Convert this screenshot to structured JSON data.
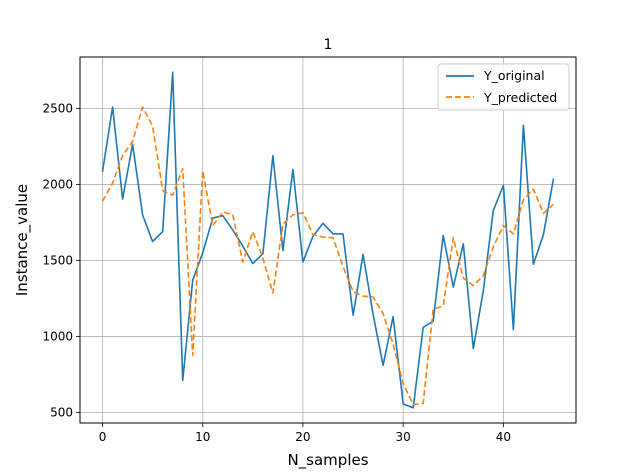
{
  "chart_data": {
    "type": "line",
    "title": "1",
    "xlabel": "N_samples",
    "ylabel": "Instance_value",
    "xlim": [
      -2.25,
      47.25
    ],
    "ylim": [
      430,
      2840
    ],
    "xticks": [
      0,
      10,
      20,
      30,
      40
    ],
    "yticks": [
      500,
      1000,
      1500,
      2000,
      2500
    ],
    "grid": true,
    "legend_position": "upper right",
    "series": [
      {
        "name": "Y_original",
        "color": "#1f77b4",
        "style": "solid",
        "values": [
          2085,
          2510,
          1905,
          2265,
          1800,
          1625,
          1690,
          2740,
          710,
          1370,
          1550,
          1780,
          1795,
          1700,
          1595,
          1480,
          1545,
          2190,
          1565,
          2100,
          1490,
          1660,
          1745,
          1675,
          1675,
          1140,
          1540,
          1145,
          810,
          1130,
          555,
          530,
          1060,
          1100,
          1665,
          1325,
          1610,
          920,
          1300,
          1830,
          1995,
          1045,
          2390,
          1475,
          1670,
          2040
        ]
      },
      {
        "name": "Y_predicted",
        "color": "#ff7f0e",
        "style": "dashed",
        "values": [
          1890,
          2010,
          2190,
          2285,
          2510,
          2385,
          1960,
          1930,
          2105,
          875,
          2090,
          1730,
          1820,
          1800,
          1490,
          1690,
          1515,
          1285,
          1740,
          1800,
          1815,
          1670,
          1655,
          1650,
          1460,
          1295,
          1265,
          1260,
          1150,
          950,
          690,
          550,
          560,
          1180,
          1200,
          1650,
          1385,
          1335,
          1400,
          1590,
          1730,
          1675,
          1900,
          1970,
          1810,
          1870
        ]
      }
    ]
  }
}
